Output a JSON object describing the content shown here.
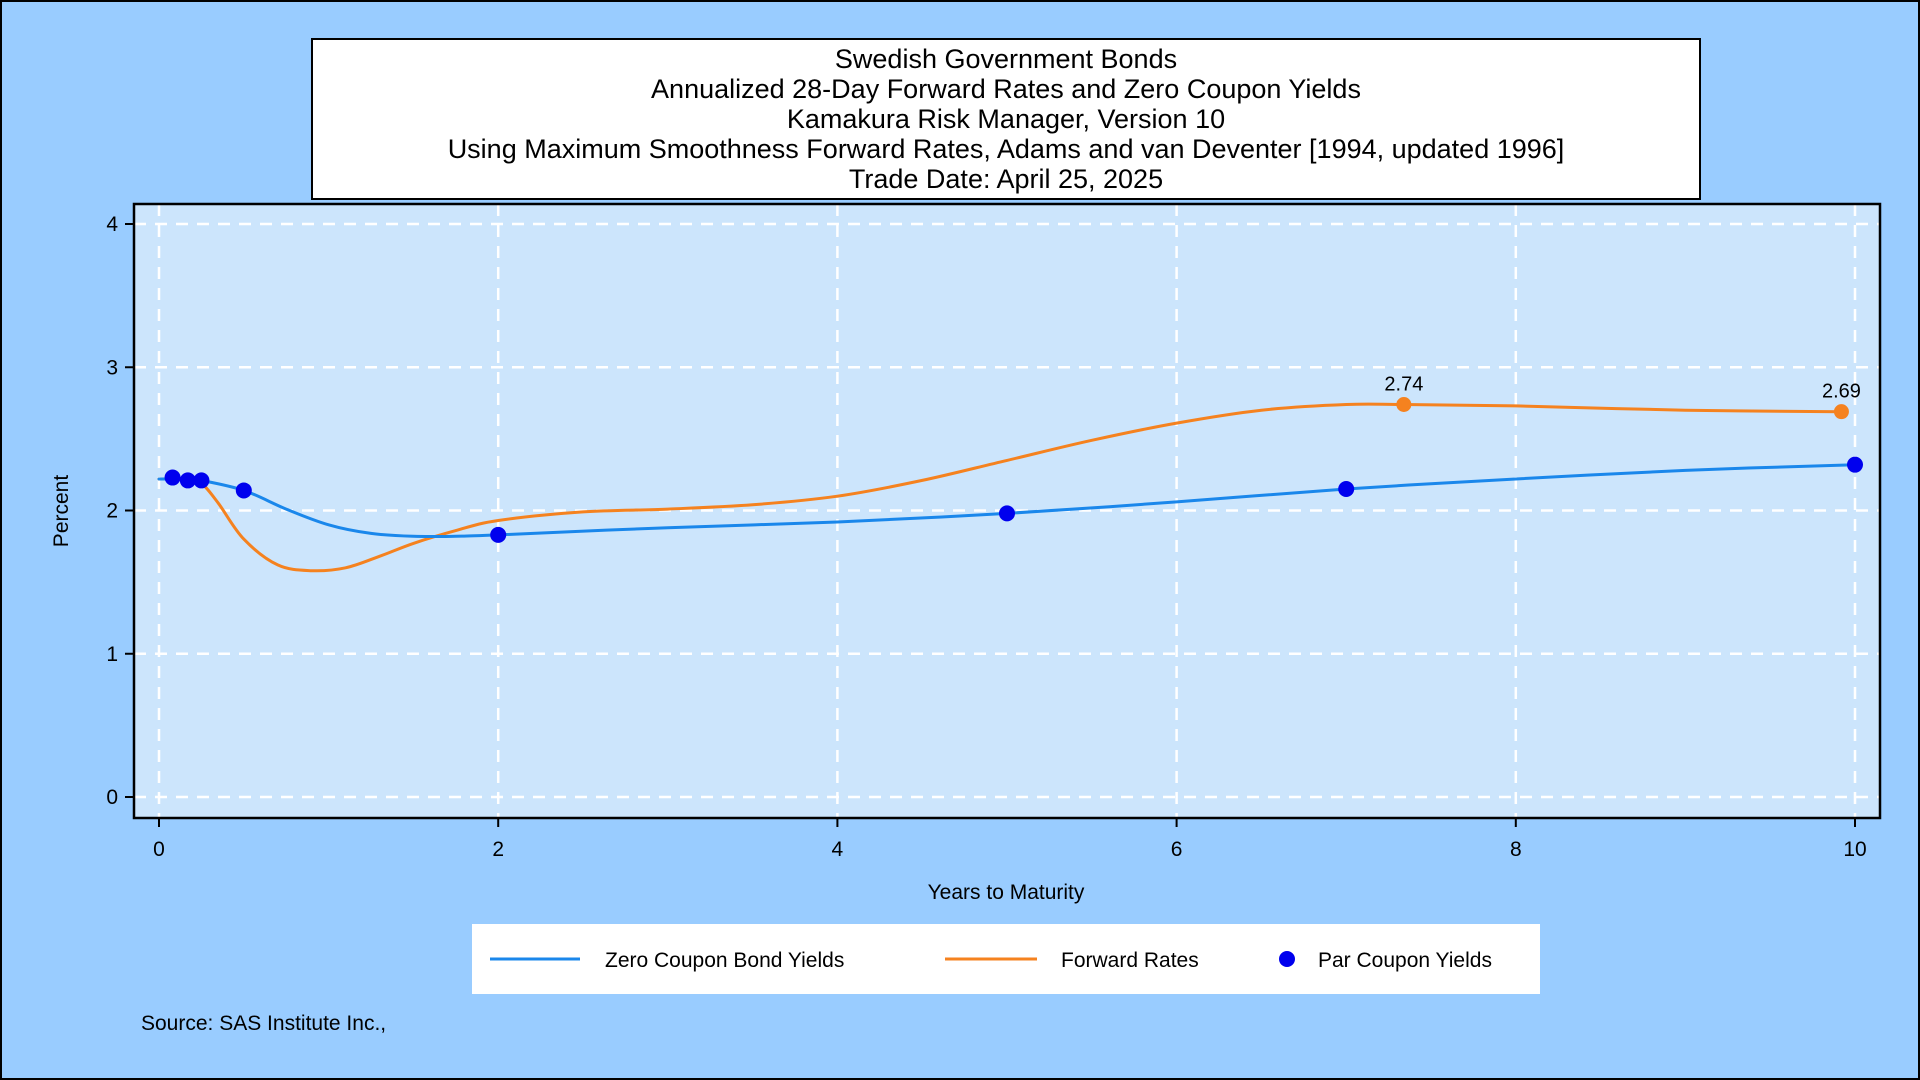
{
  "chart_data": {
    "type": "line",
    "title_lines": [
      "Swedish Government Bonds",
      "Annualized 28-Day Forward Rates and Zero Coupon Yields",
      "Kamakura Risk Manager, Version 10",
      "Using Maximum Smoothness Forward Rates, Adams and van Deventer [1994, updated 1996]",
      "Trade Date: April 25, 2025"
    ],
    "xlabel": "Years to Maturity",
    "ylabel": "Percent",
    "xlim": [
      0,
      10
    ],
    "ylim": [
      0,
      4
    ],
    "xticks": [
      "0",
      "2",
      "4",
      "6",
      "8",
      "10"
    ],
    "yticks": [
      "0",
      "1",
      "2",
      "3",
      "4"
    ],
    "grid": true,
    "legend_position": "bottom",
    "source": "Source: SAS Institute Inc.,",
    "colors": {
      "page_background": "#99ccff",
      "plot_background": "#cce5fc",
      "zero_coupon": "#1a87eb",
      "forward": "#f5821f",
      "par": "#0000ee",
      "grid": "#ffffff"
    },
    "series": [
      {
        "name": "Zero Coupon Bond Yields",
        "type": "line",
        "x": [
          0.0,
          0.08,
          0.17,
          0.25,
          0.5,
          0.75,
          1.0,
          1.25,
          1.5,
          1.75,
          2.0,
          3.0,
          4.0,
          5.0,
          6.0,
          7.0,
          8.0,
          9.0,
          10.0
        ],
        "y": [
          2.22,
          2.22,
          2.22,
          2.21,
          2.14,
          2.01,
          1.9,
          1.84,
          1.82,
          1.82,
          1.83,
          1.88,
          1.92,
          1.98,
          2.06,
          2.15,
          2.22,
          2.28,
          2.32
        ]
      },
      {
        "name": "Forward Rates",
        "type": "line",
        "x": [
          0.0,
          0.08,
          0.17,
          0.25,
          0.35,
          0.5,
          0.7,
          0.9,
          1.1,
          1.3,
          1.5,
          1.75,
          2.0,
          2.5,
          3.0,
          3.5,
          4.0,
          4.5,
          5.0,
          5.5,
          6.0,
          6.5,
          7.0,
          7.34,
          8.0,
          9.0,
          9.92
        ],
        "y": [
          2.22,
          2.22,
          2.21,
          2.19,
          2.05,
          1.8,
          1.62,
          1.58,
          1.6,
          1.68,
          1.77,
          1.86,
          1.93,
          1.99,
          2.01,
          2.04,
          2.1,
          2.21,
          2.35,
          2.49,
          2.61,
          2.7,
          2.74,
          2.74,
          2.73,
          2.7,
          2.69
        ]
      },
      {
        "name": "Par Coupon Yields",
        "type": "scatter",
        "x": [
          0.08,
          0.17,
          0.25,
          0.5,
          2.0,
          5.0,
          7.0,
          10.0
        ],
        "y": [
          2.23,
          2.21,
          2.21,
          2.14,
          1.83,
          1.98,
          2.15,
          2.32
        ]
      }
    ],
    "annotations": [
      {
        "x": 7.34,
        "y": 2.74,
        "label": "2.74"
      },
      {
        "x": 9.92,
        "y": 2.69,
        "label": "2.69"
      }
    ]
  }
}
